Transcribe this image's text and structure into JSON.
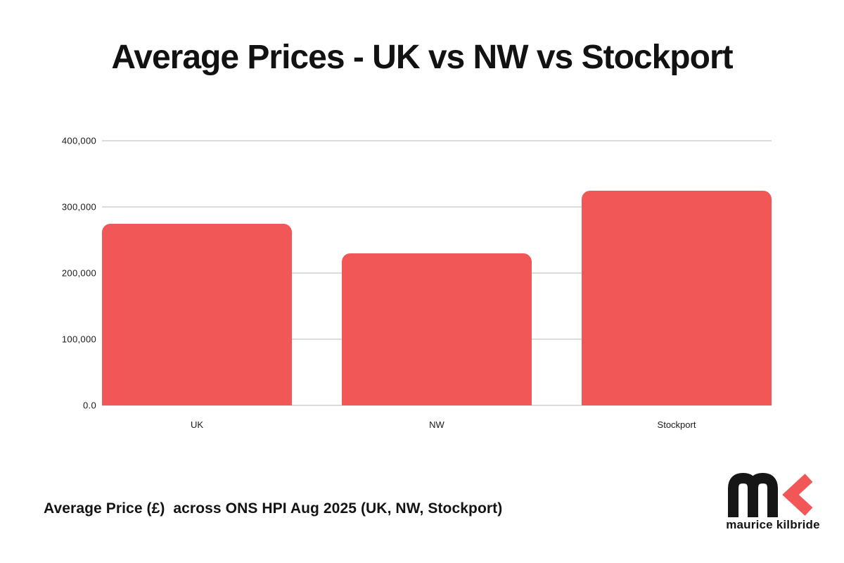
{
  "title": "Average Prices - UK vs NW vs Stockport",
  "caption": "Average Price (£)  across ONS HPI Aug 2025 (UK, NW, Stockport)",
  "logo": {
    "brand": "maurice kilbride"
  },
  "colors": {
    "bar": "#F25757",
    "grid": "#DCDCDC",
    "text": "#1A1A1A",
    "title_text": "#121212",
    "background": "#FFFFFF",
    "logo_dark": "#161616",
    "logo_accent": "#F25757"
  },
  "chart_data": {
    "type": "bar",
    "title": "Average Prices - UK vs NW vs Stockport",
    "categories": [
      "UK",
      "NW",
      "Stockport"
    ],
    "values": [
      274000,
      230000,
      325000
    ],
    "xlabel": "",
    "ylabel": "",
    "ylim": [
      0,
      400000
    ],
    "yticks": [
      0,
      100000,
      200000,
      300000,
      400000
    ],
    "ytick_labels": [
      "0.0",
      "100,000",
      "200,000",
      "300,000",
      "400,000"
    ],
    "grid": true,
    "legend": false,
    "bar_color": "#F25757",
    "annotation": "Average Price (£)  across ONS HPI Aug 2025 (UK, NW, Stockport)"
  }
}
